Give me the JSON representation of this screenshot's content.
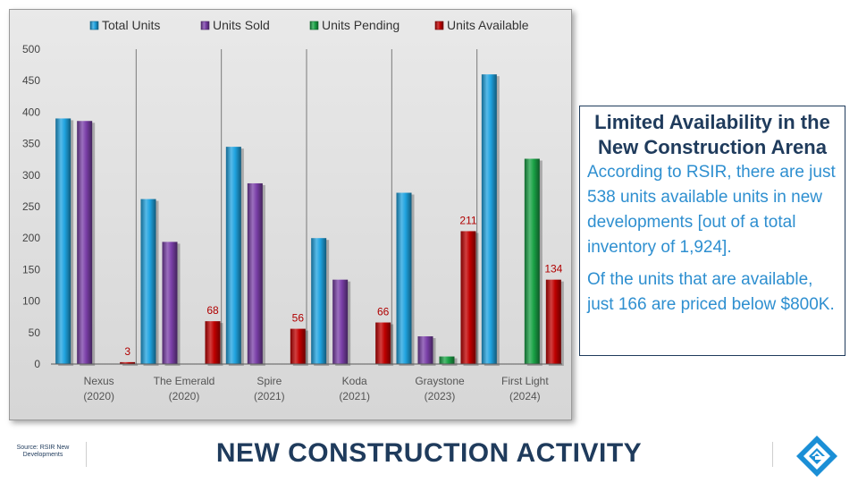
{
  "chart_data": {
    "type": "bar",
    "categories": [
      "Nexus",
      "The Emerald",
      "Spire",
      "Koda",
      "Graystone",
      "First Light"
    ],
    "category_years": [
      "(2020)",
      "(2020)",
      "(2021)",
      "(2021)",
      "(2023)",
      "(2024)"
    ],
    "series": [
      {
        "name": "Total Units",
        "values": [
          390,
          262,
          345,
          200,
          272,
          460
        ],
        "color": "#1fa3e0"
      },
      {
        "name": "Units Sold",
        "values": [
          386,
          194,
          287,
          134,
          44,
          null
        ],
        "color": "#7a3fa8"
      },
      {
        "name": "Units Pending",
        "values": [
          null,
          null,
          null,
          null,
          12,
          326
        ],
        "color": "#1aa346"
      },
      {
        "name": "Units Available",
        "values": [
          3,
          68,
          56,
          66,
          211,
          134
        ],
        "color": "#c00000"
      }
    ],
    "data_labels": {
      "series": "Units Available",
      "values": [
        3,
        68,
        56,
        66,
        211,
        134
      ]
    },
    "ylim": [
      0,
      500
    ],
    "yticks": [
      0,
      50,
      100,
      150,
      200,
      250,
      300,
      350,
      400,
      450,
      500
    ],
    "legend_position": "top",
    "title": "",
    "xlabel": "",
    "ylabel": ""
  },
  "info": {
    "title": "Limited Availability in the New Construction Arena",
    "paragraph1": "According to RSIR, there are just 538 units available units in new developments [out of a total inventory of 1,924].",
    "paragraph2": "Of the units that are available, just 166 are priced below $800K."
  },
  "footer": {
    "source": "Source: RSIR New Developments",
    "title": "NEW CONSTRUCTION ACTIVITY"
  },
  "colors": {
    "brand": "#1f3b5c",
    "accent": "#2e8fd0"
  }
}
